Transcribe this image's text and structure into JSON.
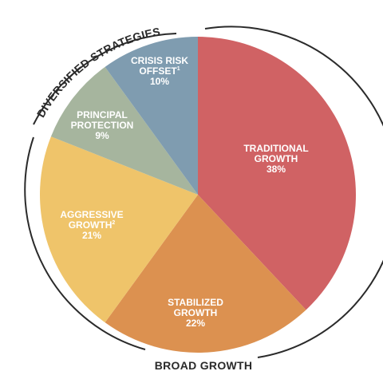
{
  "chart_data": {
    "type": "pie",
    "slices": [
      {
        "key": "traditional",
        "lines": [
          "TRADITIONAL",
          "GROWTH"
        ],
        "sup": "",
        "value": 38,
        "value_label": "38%",
        "color": "#d06264"
      },
      {
        "key": "stabilized",
        "lines": [
          "STABILIZED",
          "GROWTH"
        ],
        "sup": "",
        "value": 22,
        "value_label": "22%",
        "color": "#dc9150"
      },
      {
        "key": "aggressive",
        "lines": [
          "AGGRESSIVE",
          "GROWTH"
        ],
        "sup": "2",
        "value": 21,
        "value_label": "21%",
        "color": "#efc46a"
      },
      {
        "key": "principal",
        "lines": [
          "PRINCIPAL",
          "PROTECTION"
        ],
        "sup": "",
        "value": 9,
        "value_label": "9%",
        "color": "#a6b59e"
      },
      {
        "key": "crisis",
        "lines": [
          "CRISIS RISK",
          "OFFSET"
        ],
        "sup": "1",
        "value": 10,
        "value_label": "10%",
        "color": "#7f9cb0"
      }
    ],
    "groups": [
      {
        "key": "diversified",
        "label": "DIVERSIFIED STRATEGIES"
      },
      {
        "key": "broad",
        "label": "BROAD GROWTH"
      }
    ],
    "colors": {
      "ring": "#2a2a2a",
      "text": "#ffffff"
    }
  }
}
